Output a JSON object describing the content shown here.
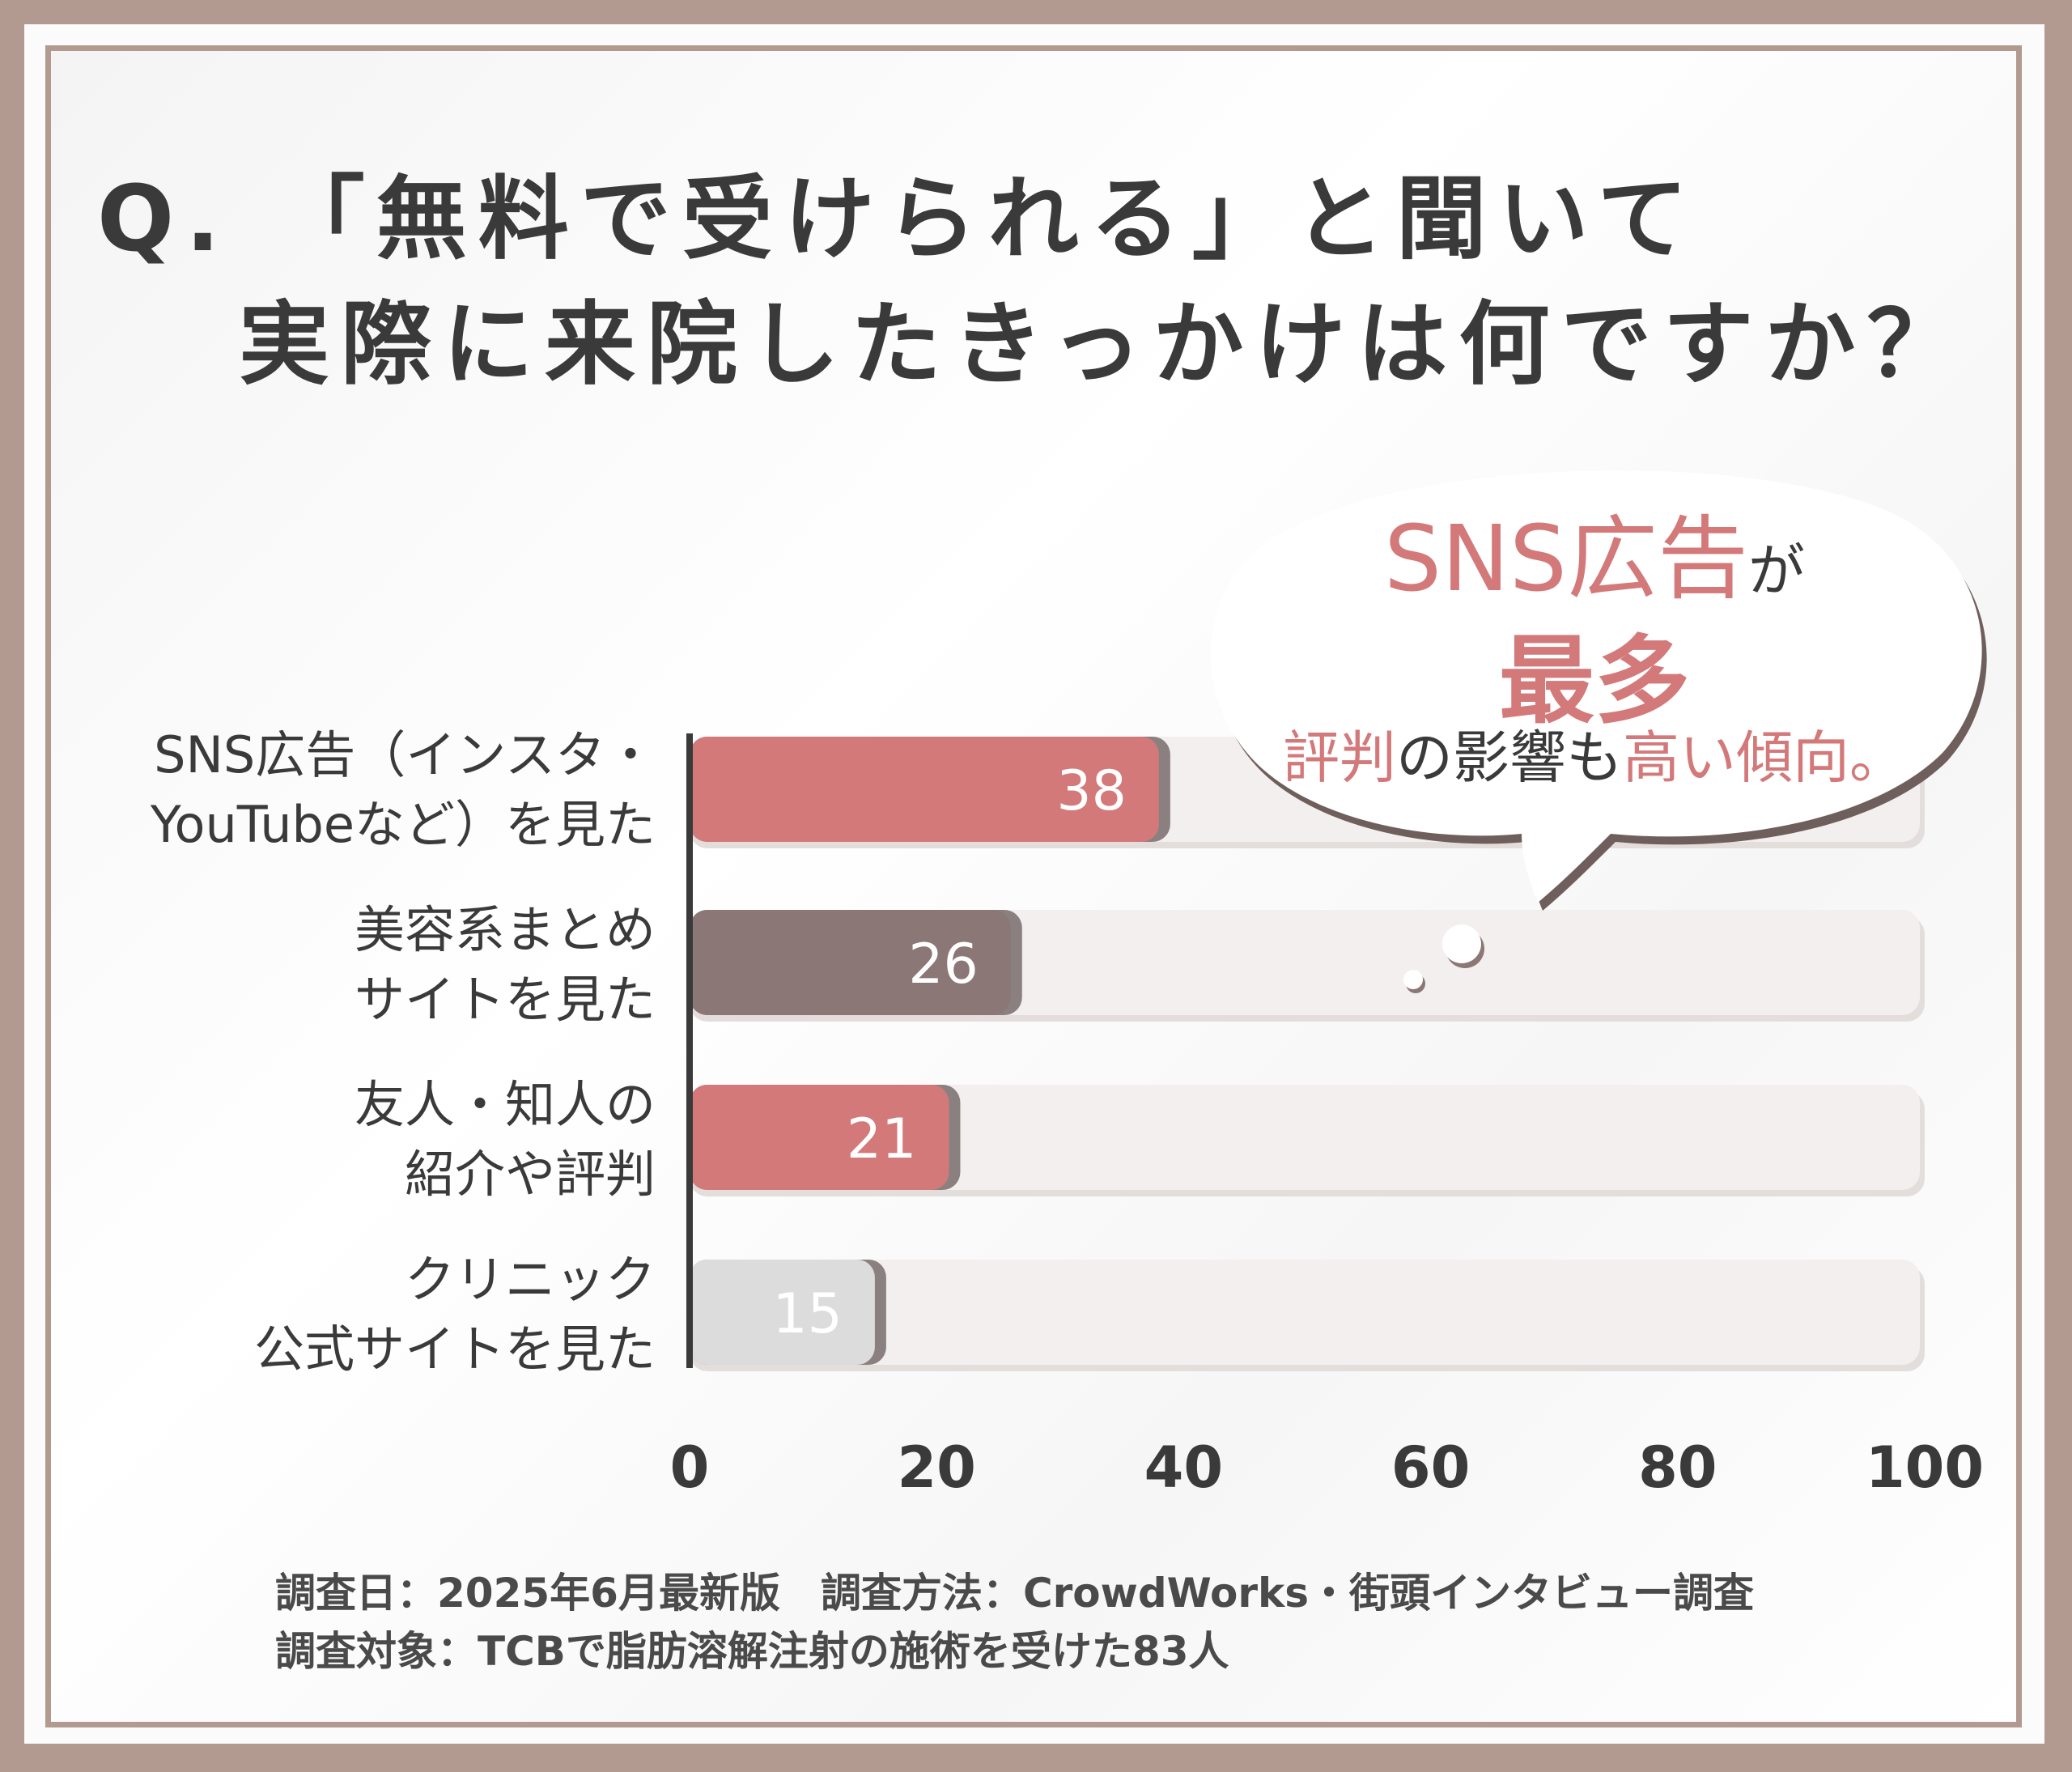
{
  "chart_data": {
    "type": "bar",
    "orientation": "horizontal",
    "title_line1": "Q. 「無料で受けられる」と聞いて",
    "title_line2": "実際に来院したきっかけは何ですか？",
    "categories": [
      [
        "SNS広告（インスタ・",
        "YouTubeなど）を見た"
      ],
      [
        "美容系まとめ",
        "サイトを見た"
      ],
      [
        "友人・知人の",
        "紹介や評判"
      ],
      [
        "クリニック",
        "公式サイトを見た"
      ]
    ],
    "values": [
      38,
      26,
      21,
      15
    ],
    "value_labels": [
      "38",
      "26",
      "21",
      "15"
    ],
    "bar_colors": [
      "#d3797a",
      "#8b7775",
      "#d3797a",
      "#dcdcdc"
    ],
    "xlim": [
      0,
      100
    ],
    "xticks": [
      "0",
      "20",
      "40",
      "60",
      "80",
      "100"
    ],
    "grid": false,
    "legend": "none"
  },
  "callout": {
    "line1_main": "SNS広告",
    "line1_tail": "が",
    "line2": "最多",
    "line3_a": "評判",
    "line3_b": "の影響も",
    "line3_c": "高い傾向。"
  },
  "footer": {
    "line1": "調査日：2025年6月最新版　調査方法：CrowdWorks・街頭インタビュー調査",
    "line2": "調査対象：TCBで脂肪溶解注射の施術を受けた83人"
  },
  "colors": {
    "frame": "#b29a90",
    "accent": "#d3797a",
    "dark_bar": "#8b7775",
    "light_bar": "#dcdcdc",
    "track": "#f2efee",
    "text": "#3a3a3a"
  }
}
